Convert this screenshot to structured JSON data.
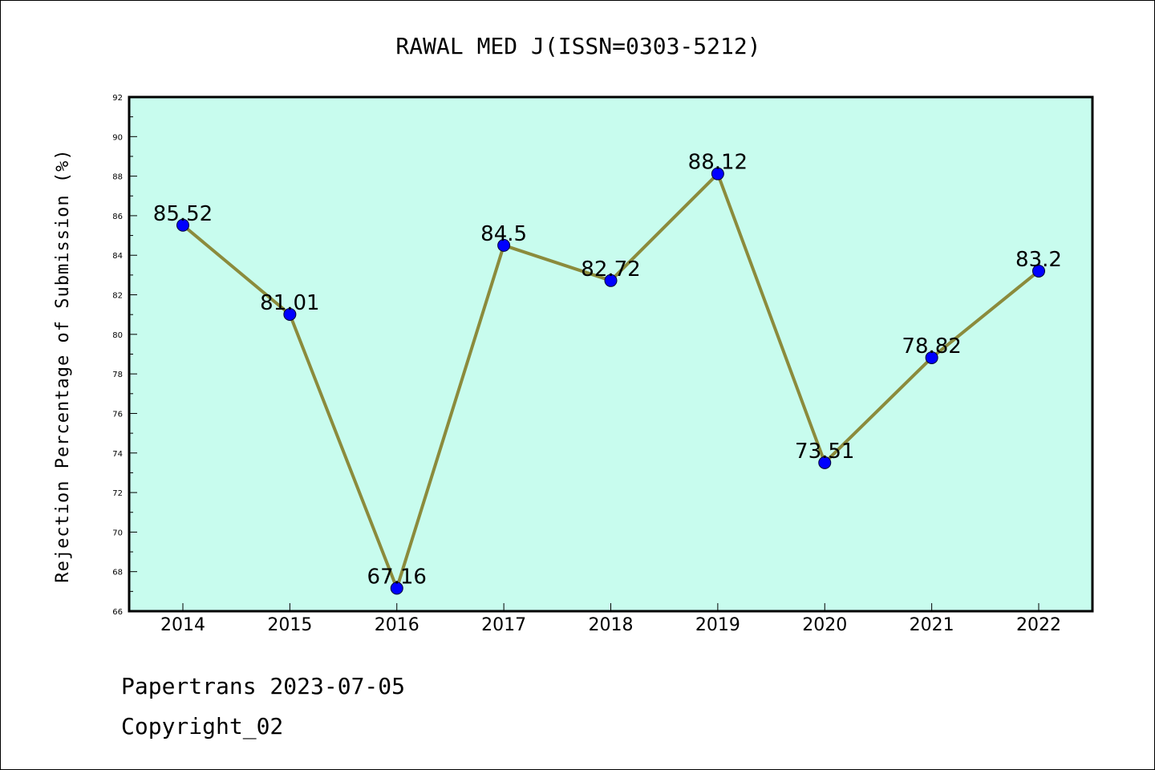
{
  "footer": {
    "line1": "Papertrans 2023-07-05",
    "line2": "Copyright_02"
  },
  "chart_data": {
    "type": "line",
    "title": "RAWAL MED J(ISSN=0303-5212)",
    "xlabel": "",
    "ylabel": "Rejection Percentage of Submission (%)",
    "categories": [
      "2014",
      "2015",
      "2016",
      "2017",
      "2018",
      "2019",
      "2020",
      "2021",
      "2022"
    ],
    "series": [
      {
        "values": [
          85.52,
          81.01,
          67.16,
          84.5,
          82.72,
          88.12,
          73.51,
          78.82,
          83.2
        ],
        "data_labels": [
          "85.52",
          "81.01",
          "67.16",
          "84.5",
          "82.72",
          "88.12",
          "73.51",
          "78.82",
          "83.2"
        ]
      }
    ],
    "ylim": [
      66,
      92
    ],
    "yticks": [
      "66",
      "68",
      "70",
      "72",
      "74",
      "76",
      "78",
      "80",
      "82",
      "84",
      "86",
      "88",
      "90",
      "92"
    ],
    "grid": false,
    "legend": "none",
    "colors": {
      "plot_background": "#c8fcee",
      "line": "#8b8b3c",
      "marker": "#0000ff"
    }
  }
}
